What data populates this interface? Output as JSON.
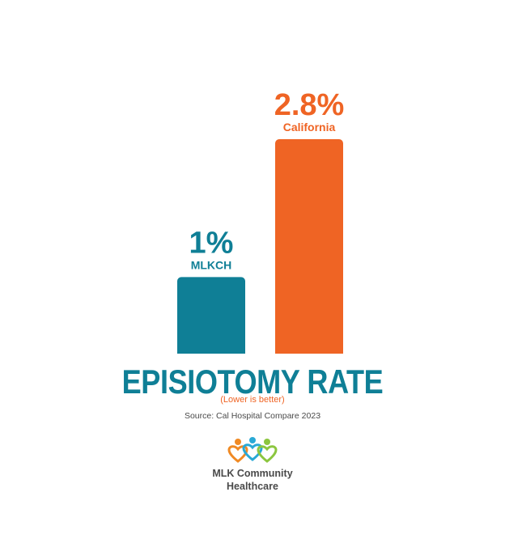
{
  "colors": {
    "teal": "#0f7f96",
    "orange": "#ef6424",
    "gray": "#4a4a4a",
    "logo_orange": "#f08a24",
    "logo_blue": "#29a9d6",
    "logo_green": "#8cc63f"
  },
  "chart_data": {
    "type": "bar",
    "title": "EPISIOTOMY RATE",
    "subtitle": "(Lower is better)",
    "categories": [
      "MLKCH",
      "California"
    ],
    "values": [
      1,
      2.8
    ],
    "value_labels": [
      "1%",
      "2.8%"
    ],
    "bar_colors": [
      "#0f7f96",
      "#ef6424"
    ],
    "unit": "%",
    "ylim": [
      0,
      2.8
    ],
    "grid": false
  },
  "source": "Source: Cal Hospital Compare 2023",
  "logo": {
    "icon": "three-people-hearts-icon",
    "line1": "MLK Community",
    "line2": "Healthcare"
  }
}
